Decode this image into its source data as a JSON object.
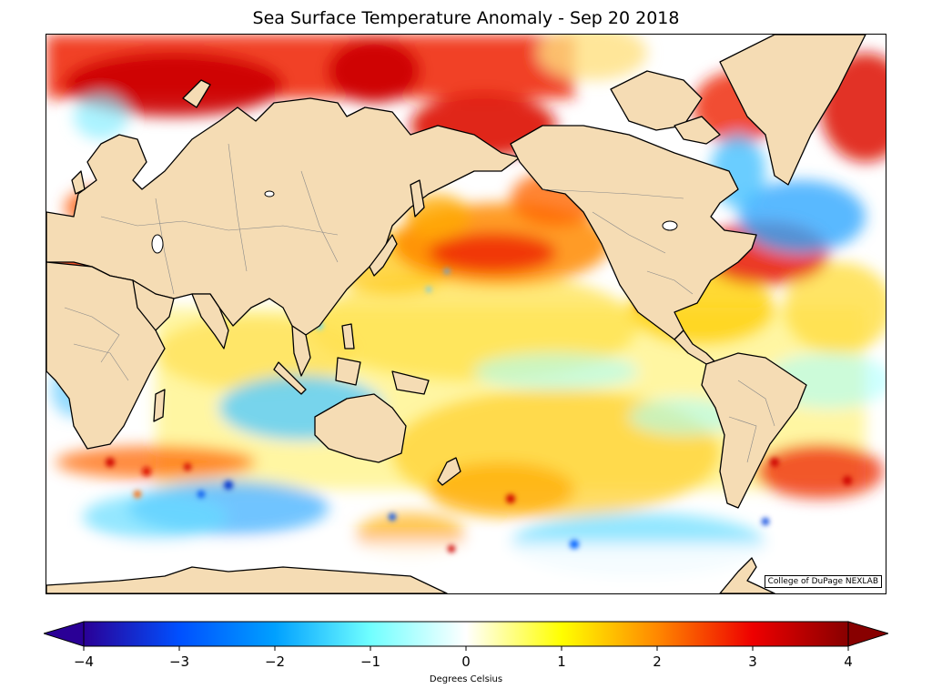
{
  "title": "Sea Surface Temperature Anomaly - Sep 20 2018",
  "credit": "College of DuPage NEXLAB",
  "colorbar": {
    "label": "Degrees Celsius",
    "min": -4,
    "max": 4,
    "ticks": [
      "−4",
      "−3",
      "−2",
      "−1",
      "0",
      "1",
      "2",
      "3",
      "4"
    ],
    "extend": "both",
    "stops": [
      {
        "value": -4,
        "color": "#2a0096"
      },
      {
        "value": -3,
        "color": "#0050ff"
      },
      {
        "value": -2,
        "color": "#00a0ff"
      },
      {
        "value": -1,
        "color": "#70ffff"
      },
      {
        "value": 0,
        "color": "#ffffff"
      },
      {
        "value": 1,
        "color": "#ffff00"
      },
      {
        "value": 2,
        "color": "#ff8800"
      },
      {
        "value": 3,
        "color": "#ee0000"
      },
      {
        "value": 4,
        "color": "#880000"
      }
    ]
  },
  "colors": {
    "land": "#f5dcb4",
    "ocean_neutral": "#ffffff",
    "coastline": "#000000",
    "borders": "#888888"
  }
}
